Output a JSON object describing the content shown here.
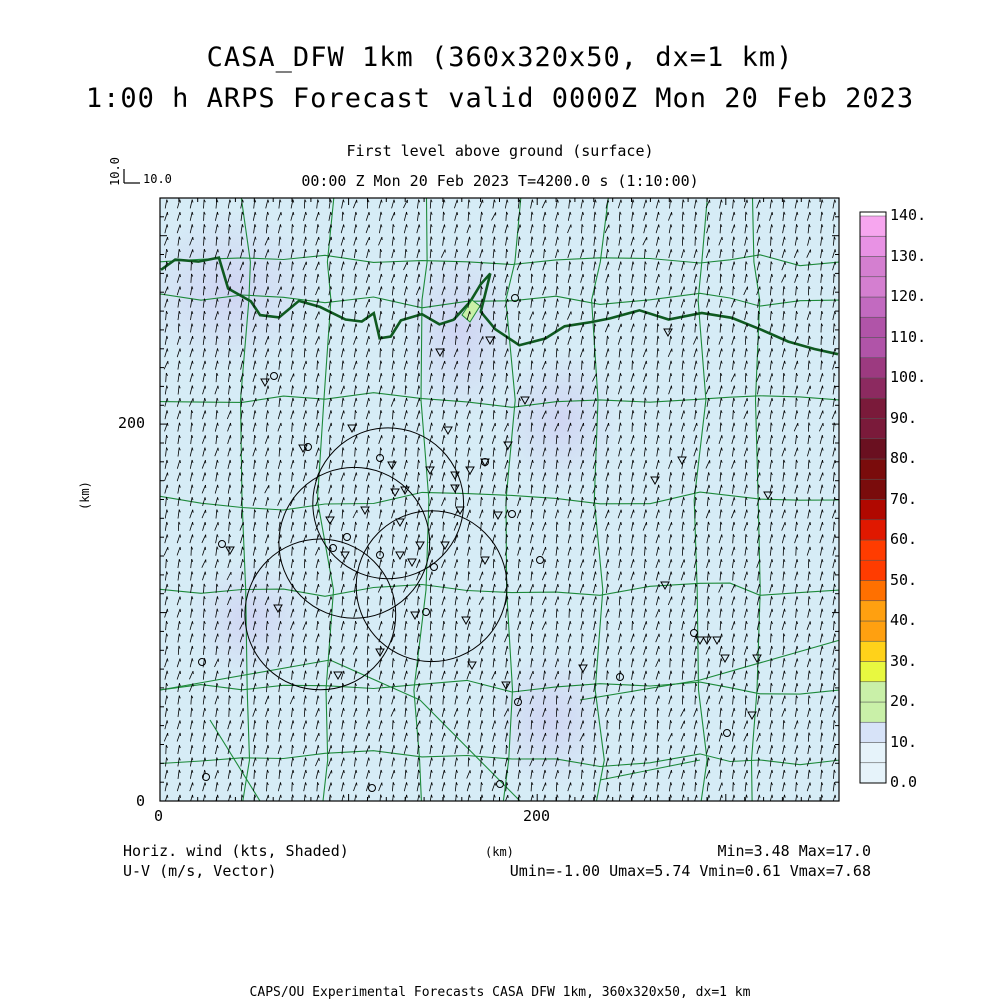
{
  "titles": {
    "line1": "CASA_DFW 1km (360x320x50, dx=1 km)",
    "line2": "1:00 h ARPS Forecast valid 0000Z Mon 20 Feb 2023",
    "level": "First level above ground (surface)",
    "time": "00:00 Z Mon 20 Feb 2023    T=4200.0 s (1:10:00)",
    "footer": "CAPS/OU Experimental Forecasts  CASA DFW 1km, 360x320x50, dx=1 km"
  },
  "vector_key": {
    "value_x": "10.0",
    "value_y": "10.0"
  },
  "bottom_left": {
    "line1": "Horiz. wind (kts, Shaded)",
    "line2": "U-V (m/s, Vector)"
  },
  "bottom_right": {
    "line1": "Min=3.48 Max=17.0",
    "line2": "Umin=-1.00 Umax=5.74 Vmin=0.61 Vmax=7.68"
  },
  "colors": {
    "field_base": "#d6ecf6",
    "field_light": "#e4f1f8",
    "field_violet": "#d8d8f2",
    "county_lines": "#1d8a3a",
    "border_line": "#0f5a20",
    "vector": "#000000",
    "marker": "#000000",
    "colorbar": [
      "#e6f3fa",
      "#d7e3f8",
      "#c9f0a8",
      "#e8f840",
      "#ffd21a",
      "#ffa010",
      "#ff7000",
      "#ff3c00",
      "#e01800",
      "#b00800",
      "#7a0c0c",
      "#6a1020",
      "#7a1a3a",
      "#8c2a60",
      "#9c3a80",
      "#b054a8",
      "#c26ac0",
      "#d47fd0",
      "#e892e4",
      "#f7a6ef"
    ]
  },
  "colorbar_labels": [
    "0.0",
    "10.",
    "20.",
    "30.",
    "40.",
    "50.",
    "60.",
    "70.",
    "80.",
    "90.",
    "100.",
    "110.",
    "120.",
    "130.",
    "140."
  ],
  "chart_data": {
    "type": "heatmap",
    "title": "CASA_DFW 1km (360x320x50, dx=1 km)",
    "xlabel": "(km)",
    "ylabel": "(km)",
    "xlim": [
      0,
      360
    ],
    "ylim": [
      0,
      320
    ],
    "x_ticks": [
      "0",
      "200"
    ],
    "y_ticks": [
      "0",
      "200"
    ],
    "colorbar_range": [
      0,
      140
    ],
    "field": "Horiz. wind (kts)",
    "min": 3.48,
    "max": 17.0,
    "umin": -1.0,
    "umax": 5.74,
    "vmin": 0.61,
    "vmax": 7.68,
    "radar_circles_km": [
      {
        "x": 121,
        "y": 158,
        "r": 40
      },
      {
        "x": 103,
        "y": 137,
        "r": 40
      },
      {
        "x": 144,
        "y": 114,
        "r": 40
      },
      {
        "x": 85,
        "y": 99,
        "r": 40
      }
    ]
  }
}
